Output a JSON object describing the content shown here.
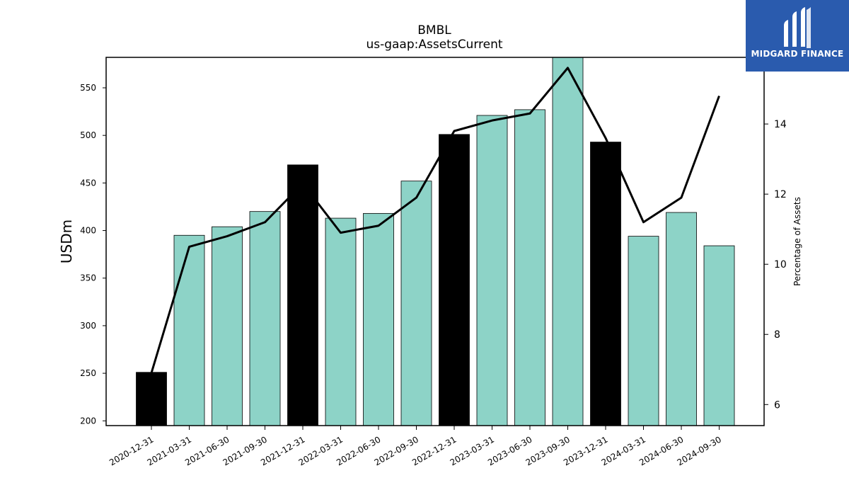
{
  "brand": {
    "name": "MIDGARD FINANCE",
    "logo_icon": "midgard-logo-icon"
  },
  "colors": {
    "bar_default": "#8dd3c7",
    "bar_highlight": "#000000",
    "line": "#000000",
    "logo_bg": "#2a5bae"
  },
  "chart_data": {
    "type": "bar",
    "title": "BMBL",
    "subtitle": "us-gaap:AssetsCurrent",
    "ylabel": "USDm",
    "y2label": "Percentage of Assets",
    "ylim": [
      195,
      582
    ],
    "y2lim": [
      5.4,
      15.9
    ],
    "yticks": [
      200,
      250,
      300,
      350,
      400,
      450,
      500,
      550
    ],
    "y2ticks": [
      6,
      8,
      10,
      12,
      14
    ],
    "categories": [
      "2020-12-31",
      "2021-03-31",
      "2021-06-30",
      "2021-09-30",
      "2021-12-31",
      "2022-03-31",
      "2022-06-30",
      "2022-09-30",
      "2022-12-31",
      "2023-03-31",
      "2023-06-30",
      "2023-09-30",
      "2023-12-31",
      "2024-03-31",
      "2024-06-30",
      "2024-09-30"
    ],
    "series": [
      {
        "type": "bar",
        "axis": "left",
        "values": [
          251,
          395,
          404,
          420,
          469,
          413,
          418,
          452,
          501,
          521,
          527,
          582,
          493,
          394,
          419,
          384
        ],
        "highlight": [
          true,
          false,
          false,
          false,
          true,
          false,
          false,
          false,
          true,
          false,
          false,
          false,
          true,
          false,
          false,
          false
        ]
      },
      {
        "type": "line",
        "axis": "right",
        "values": [
          6.9,
          10.5,
          10.8,
          11.2,
          12.3,
          10.9,
          11.1,
          11.9,
          13.8,
          14.1,
          14.3,
          15.6,
          13.6,
          11.2,
          11.9,
          14.8
        ]
      }
    ],
    "grid": false,
    "legend": "none"
  }
}
